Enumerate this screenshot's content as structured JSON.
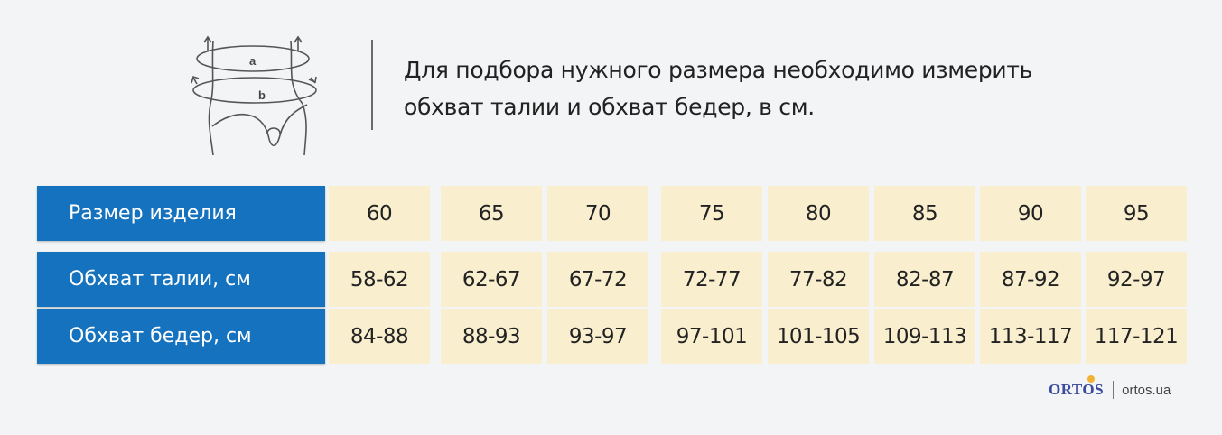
{
  "illustration": {
    "label_a": "a",
    "label_b": "b"
  },
  "instruction": "Для подбора нужного размера необходимо измерить обхват талии и обхват бедер, в см.",
  "size_table": {
    "rows": [
      {
        "label": "Размер изделия",
        "cells": [
          "60",
          "65",
          "70",
          "75",
          "80",
          "85",
          "90",
          "95"
        ]
      },
      {
        "label": "Обхват талии, см",
        "cells": [
          "58-62",
          "62-67",
          "67-72",
          "72-77",
          "77-82",
          "82-87",
          "87-92",
          "92-97"
        ]
      },
      {
        "label": "Обхват бедер, см",
        "cells": [
          "84-88",
          "88-93",
          "93-97",
          "97-101",
          "101-105",
          "109-113",
          "113-117",
          "117-121"
        ]
      }
    ]
  },
  "footer": {
    "brand": "ORTOS",
    "site": "ortos.ua"
  },
  "colors": {
    "header_bg": "#1572be",
    "cell_bg": "#f9efcf",
    "page_bg": "#f3f4f6",
    "brand": "#3a4a9e",
    "brand_accent": "#f2b233"
  }
}
